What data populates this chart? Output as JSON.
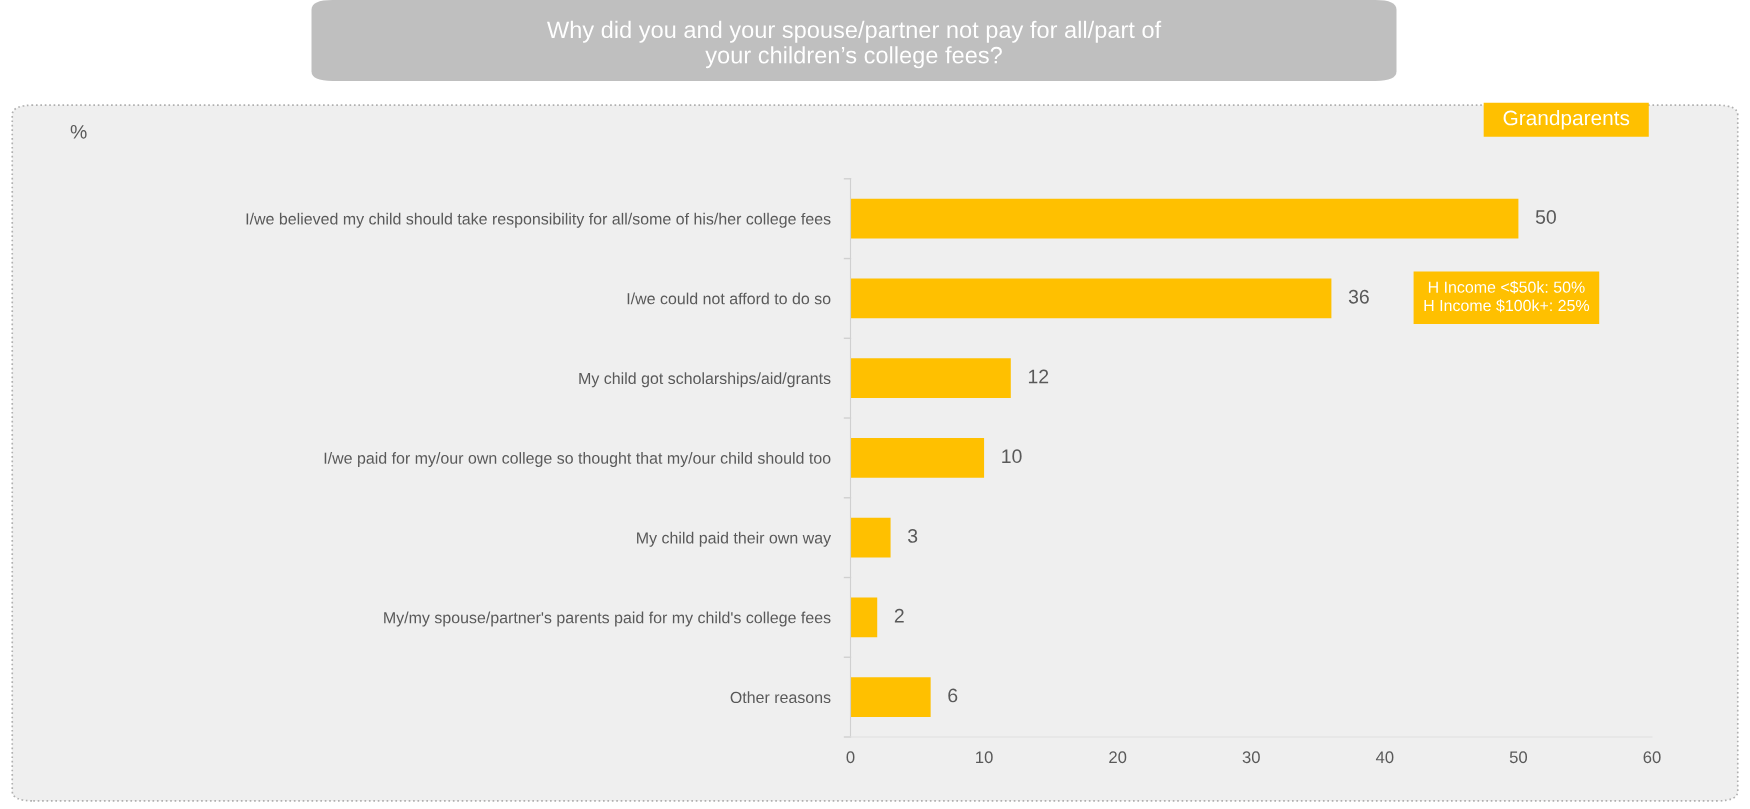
{
  "chart_data": {
    "type": "bar",
    "orientation": "horizontal",
    "title": "Why did you and your spouse/partner not pay for all/part of\nyour children’s college fees?",
    "categories": [
      "I/we believed my child should take responsibility for all/some of his/her college fees",
      "I/we could not afford to do so",
      "My child got scholarships/aid/grants",
      "I/we paid for my/our own college so thought that my/our child should too",
      "My child paid their own way",
      "My/my spouse/partner's parents paid for my child's college fees",
      "Other reasons"
    ],
    "series": [
      {
        "name": "Grandparents",
        "color": "#ffc000",
        "values": [
          50,
          36,
          12,
          10,
          3,
          2,
          6
        ]
      }
    ],
    "data_labels": true,
    "xlim": [
      0,
      60
    ],
    "xticks": [
      0,
      10,
      20,
      30,
      40,
      50,
      60
    ],
    "grid": false,
    "legend": "top right",
    "annotations": [
      "%",
      "H Income <$50k: 50%\nH Income $100k+: 25%"
    ]
  }
}
